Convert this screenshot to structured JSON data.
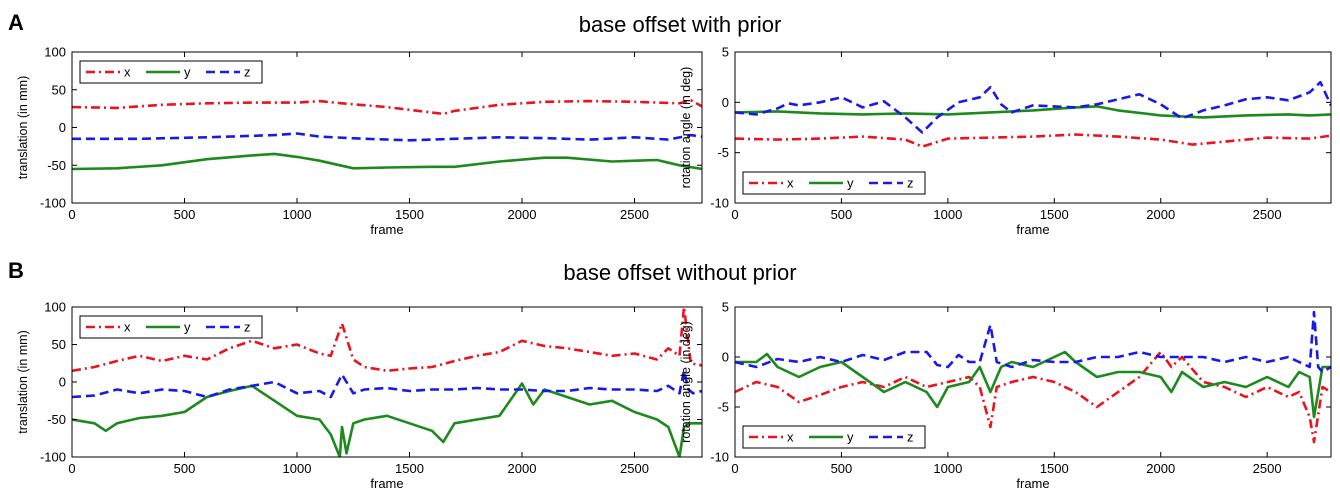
{
  "panels": [
    {
      "letter": "A",
      "title": "base offset with prior"
    },
    {
      "letter": "B",
      "title": "base offset without prior"
    }
  ],
  "colors": {
    "x": "#e8141e",
    "y": "#1e8a1e",
    "z": "#1a1ae6"
  },
  "chart_data": [
    {
      "type": "line",
      "panel": "A",
      "xlabel": "frame",
      "ylabel": "translation (in mm)",
      "xlim": [
        0,
        2800
      ],
      "ylim": [
        -100,
        100
      ],
      "xticks": [
        0,
        500,
        1000,
        1500,
        2000,
        2500
      ],
      "yticks": [
        100,
        50,
        0,
        -50,
        -100
      ],
      "legend": "top-left",
      "series": [
        {
          "name": "x",
          "style": "dashdot",
          "x": [
            0,
            200,
            400,
            600,
            800,
            1000,
            1100,
            1200,
            1400,
            1650,
            1700,
            1900,
            2100,
            2300,
            2500,
            2700,
            2750,
            2800
          ],
          "y": [
            27,
            26,
            30,
            32,
            33,
            33,
            35,
            32,
            27,
            18,
            22,
            30,
            34,
            35,
            34,
            32,
            36,
            28
          ]
        },
        {
          "name": "y",
          "style": "solid",
          "x": [
            0,
            200,
            400,
            600,
            800,
            900,
            1000,
            1100,
            1250,
            1400,
            1600,
            1700,
            1900,
            2100,
            2200,
            2400,
            2600,
            2700,
            2800
          ],
          "y": [
            -55,
            -54,
            -50,
            -42,
            -37,
            -35,
            -39,
            -44,
            -54,
            -53,
            -52,
            -52,
            -45,
            -40,
            -40,
            -45,
            -43,
            -50,
            -55
          ]
        },
        {
          "name": "z",
          "style": "dashed",
          "x": [
            0,
            300,
            600,
            900,
            1000,
            1100,
            1300,
            1500,
            1700,
            1900,
            2100,
            2300,
            2500,
            2650,
            2750,
            2800
          ],
          "y": [
            -15,
            -15,
            -13,
            -10,
            -8,
            -12,
            -15,
            -17,
            -15,
            -13,
            -14,
            -16,
            -13,
            -16,
            -10,
            -12
          ]
        }
      ]
    },
    {
      "type": "line",
      "panel": "A",
      "xlabel": "frame",
      "ylabel": "rotation angle (in deg)",
      "xlim": [
        0,
        2800
      ],
      "ylim": [
        -10,
        5
      ],
      "xticks": [
        0,
        500,
        1000,
        1500,
        2000,
        2500
      ],
      "yticks": [
        5,
        0,
        -5,
        -10
      ],
      "legend": "bottom-left",
      "series": [
        {
          "name": "x",
          "style": "dashdot",
          "x": [
            0,
            200,
            400,
            600,
            800,
            880,
            1000,
            1200,
            1400,
            1600,
            1800,
            2000,
            2150,
            2300,
            2500,
            2700,
            2800
          ],
          "y": [
            -3.6,
            -3.7,
            -3.6,
            -3.4,
            -3.7,
            -4.4,
            -3.6,
            -3.5,
            -3.4,
            -3.2,
            -3.4,
            -3.7,
            -4.2,
            -3.9,
            -3.5,
            -3.6,
            -3.3
          ]
        },
        {
          "name": "y",
          "style": "solid",
          "x": [
            0,
            200,
            400,
            600,
            800,
            1000,
            1200,
            1400,
            1600,
            1700,
            1800,
            2000,
            2200,
            2400,
            2600,
            2700,
            2800
          ],
          "y": [
            -1.0,
            -0.9,
            -1.1,
            -1.2,
            -1.1,
            -1.2,
            -1.0,
            -0.8,
            -0.5,
            -0.4,
            -0.8,
            -1.3,
            -1.5,
            -1.3,
            -1.2,
            -1.3,
            -1.2
          ]
        },
        {
          "name": "z",
          "style": "dashed",
          "x": [
            0,
            100,
            200,
            250,
            300,
            400,
            500,
            550,
            600,
            700,
            800,
            880,
            950,
            1050,
            1150,
            1200,
            1250,
            1300,
            1400,
            1500,
            1600,
            1700,
            1800,
            1900,
            2000,
            2100,
            2200,
            2300,
            2400,
            2500,
            2600,
            2700,
            2750,
            2800
          ],
          "y": [
            -1.0,
            -1.2,
            -0.6,
            -0.1,
            -0.3,
            0.0,
            0.5,
            0.0,
            -0.5,
            0.1,
            -1.5,
            -3.0,
            -1.5,
            0.0,
            0.5,
            1.5,
            -0.2,
            -1.0,
            -0.3,
            -0.4,
            -0.5,
            -0.2,
            0.3,
            0.8,
            -0.2,
            -1.6,
            -0.8,
            -0.3,
            0.3,
            0.5,
            0.2,
            1.0,
            2.0,
            -0.3
          ]
        }
      ]
    },
    {
      "type": "line",
      "panel": "B",
      "xlabel": "frame",
      "ylabel": "translation (in mm)",
      "xlim": [
        0,
        2800
      ],
      "ylim": [
        -100,
        100
      ],
      "xticks": [
        0,
        500,
        1000,
        1500,
        2000,
        2500
      ],
      "yticks": [
        100,
        50,
        0,
        -50,
        -100
      ],
      "legend": "top-left",
      "series": [
        {
          "name": "x",
          "style": "dashdot",
          "x": [
            0,
            100,
            200,
            300,
            400,
            500,
            600,
            700,
            800,
            900,
            1000,
            1100,
            1150,
            1200,
            1250,
            1300,
            1400,
            1500,
            1600,
            1700,
            1800,
            1900,
            2000,
            2100,
            2200,
            2300,
            2400,
            2500,
            2600,
            2650,
            2700,
            2720,
            2750,
            2800
          ],
          "y": [
            15,
            20,
            28,
            35,
            28,
            35,
            30,
            45,
            55,
            45,
            50,
            38,
            35,
            78,
            30,
            20,
            15,
            18,
            20,
            28,
            35,
            40,
            55,
            48,
            45,
            40,
            35,
            38,
            30,
            45,
            35,
            100,
            25,
            22
          ]
        },
        {
          "name": "y",
          "style": "solid",
          "x": [
            0,
            100,
            150,
            200,
            300,
            400,
            500,
            600,
            700,
            800,
            900,
            1000,
            1100,
            1150,
            1190,
            1200,
            1220,
            1250,
            1300,
            1400,
            1500,
            1600,
            1650,
            1700,
            1800,
            1900,
            2000,
            2050,
            2100,
            2200,
            2300,
            2400,
            2500,
            2600,
            2650,
            2700,
            2720,
            2750,
            2800
          ],
          "y": [
            -50,
            -55,
            -65,
            -55,
            -48,
            -45,
            -40,
            -20,
            -12,
            -5,
            -25,
            -45,
            -50,
            -70,
            -100,
            -60,
            -95,
            -55,
            -50,
            -45,
            -55,
            -65,
            -80,
            -55,
            -50,
            -45,
            -2,
            -30,
            -10,
            -20,
            -30,
            -25,
            -40,
            -50,
            -60,
            -100,
            -60,
            -55,
            -55
          ]
        },
        {
          "name": "z",
          "style": "dashed",
          "x": [
            0,
            100,
            200,
            300,
            400,
            500,
            600,
            700,
            800,
            900,
            1000,
            1100,
            1150,
            1200,
            1250,
            1300,
            1400,
            1500,
            1600,
            1700,
            1800,
            1900,
            2000,
            2100,
            2200,
            2300,
            2400,
            2500,
            2600,
            2650,
            2700,
            2720,
            2740,
            2760,
            2800
          ],
          "y": [
            -20,
            -18,
            -10,
            -15,
            -10,
            -12,
            -20,
            -10,
            -5,
            0,
            -15,
            -12,
            -20,
            10,
            -15,
            -10,
            -8,
            -12,
            -10,
            -10,
            -8,
            -10,
            -10,
            -12,
            -12,
            -8,
            -10,
            -10,
            -12,
            -5,
            -15,
            15,
            -10,
            -15,
            -12
          ]
        }
      ]
    },
    {
      "type": "line",
      "panel": "B",
      "xlabel": "frame",
      "ylabel": "rotation angle (in deg)",
      "xlim": [
        0,
        2800
      ],
      "ylim": [
        -10,
        5
      ],
      "xticks": [
        0,
        500,
        1000,
        1500,
        2000,
        2500
      ],
      "yticks": [
        5,
        0,
        -5,
        -10
      ],
      "legend": "bottom-left",
      "series": [
        {
          "name": "x",
          "style": "dashdot",
          "x": [
            0,
            100,
            200,
            300,
            400,
            500,
            600,
            700,
            800,
            900,
            1000,
            1100,
            1150,
            1200,
            1230,
            1300,
            1400,
            1500,
            1600,
            1700,
            1800,
            1900,
            2000,
            2050,
            2100,
            2200,
            2300,
            2400,
            2500,
            2600,
            2650,
            2700,
            2720,
            2760,
            2800
          ],
          "y": [
            -3.5,
            -2.5,
            -3.0,
            -4.5,
            -3.8,
            -3.0,
            -2.5,
            -3.0,
            -2.0,
            -3.0,
            -2.5,
            -2.0,
            -3.0,
            -7.0,
            -3.0,
            -2.5,
            -2.0,
            -2.5,
            -3.5,
            -5.0,
            -3.5,
            -2.0,
            0.5,
            -1.0,
            0.0,
            -2.5,
            -3.0,
            -4.0,
            -3.0,
            -4.0,
            -3.5,
            -6.0,
            -8.5,
            -3.0,
            -3.5
          ]
        },
        {
          "name": "y",
          "style": "solid",
          "x": [
            0,
            100,
            150,
            200,
            300,
            400,
            500,
            600,
            700,
            800,
            900,
            950,
            1000,
            1100,
            1150,
            1200,
            1250,
            1300,
            1400,
            1500,
            1550,
            1600,
            1700,
            1800,
            1900,
            2000,
            2050,
            2100,
            2200,
            2300,
            2400,
            2500,
            2600,
            2650,
            2700,
            2720,
            2760,
            2800
          ],
          "y": [
            -0.5,
            -0.5,
            0.3,
            -1.0,
            -2.0,
            -1.0,
            -0.5,
            -2.0,
            -3.5,
            -2.5,
            -3.5,
            -5.0,
            -3.0,
            -2.5,
            -1.0,
            -3.5,
            -1.0,
            -0.5,
            -1.0,
            0.0,
            0.5,
            -0.5,
            -2.0,
            -1.5,
            -1.5,
            -2.0,
            -3.5,
            -1.5,
            -3.0,
            -2.5,
            -3.0,
            -2.0,
            -3.0,
            -1.5,
            -2.0,
            -6.0,
            -1.0,
            -1.0
          ]
        },
        {
          "name": "z",
          "style": "dashed",
          "x": [
            0,
            100,
            200,
            300,
            400,
            500,
            600,
            700,
            800,
            900,
            950,
            1000,
            1050,
            1100,
            1150,
            1200,
            1230,
            1300,
            1400,
            1500,
            1600,
            1700,
            1800,
            1900,
            2000,
            2100,
            2200,
            2300,
            2400,
            2500,
            2600,
            2650,
            2700,
            2720,
            2740,
            2760,
            2800
          ],
          "y": [
            -0.5,
            -1.0,
            -0.2,
            -0.5,
            0.0,
            -0.5,
            0.2,
            -0.3,
            0.5,
            0.5,
            -0.8,
            -1.0,
            0.2,
            -0.5,
            -0.5,
            3.2,
            -0.5,
            -1.0,
            -0.3,
            -0.5,
            -0.5,
            0.0,
            0.0,
            0.5,
            0.0,
            0.0,
            0.0,
            -0.5,
            0.0,
            -0.5,
            0.0,
            -0.5,
            -1.0,
            4.5,
            -1.0,
            -1.5,
            -1.0
          ]
        }
      ]
    }
  ]
}
